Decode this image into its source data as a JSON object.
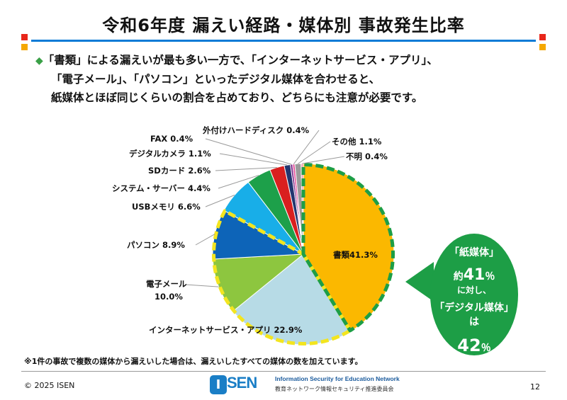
{
  "title": "令和6年度 漏えい経路・媒体別 事故発生比率",
  "summary": {
    "bullet": "◆",
    "line1": "「書類」による漏えいが最も多い一方で、「インターネットサービス・アプリ」、",
    "line2": "「電子メール」、「パソコン」といったデジタル媒体を合わせると、",
    "line3": "紙媒体とほぼ同じくらいの割合を占めており、どちらにも注意が必要です。"
  },
  "callout": {
    "line1": "「紙媒体」",
    "prefix": "約",
    "value": "41",
    "unit": "％",
    "line3": "に対し、",
    "line4": "「デジタル媒体」は",
    "value2": "42",
    "unit2": "％"
  },
  "note": "※1件の事故で複数の媒体から漏えいした場合は、漏えいしたすべての媒体の数を加えています。",
  "footer": {
    "copyright": "© 2025 ISEN",
    "logo_letter": "I",
    "logo_name": "SEN",
    "logo_en": "Information Security for Education Network",
    "logo_ja": "教育ネットワーク情報セキュリティ推進委員会",
    "page": "12"
  },
  "colors": {
    "accent_blue": "#0a7bd6",
    "green": "#1d9e46",
    "highlight_yellow": "#f3e51f",
    "square_red": "#e8261a",
    "square_orange": "#f5a800"
  },
  "chart_data": {
    "type": "pie",
    "start": "12 o'clock, clockwise",
    "slices": [
      {
        "name": "書類",
        "value": 41.3,
        "label": "書類41.3%",
        "color": "#fbb800"
      },
      {
        "name": "インターネットサービス・アプリ",
        "value": 22.9,
        "label": "インターネットサービス・アプリ 22.9%",
        "color": "#b7dbe6"
      },
      {
        "name": "電子メール",
        "value": 10.0,
        "label": "電子メール\n10.0%",
        "color": "#8dc63f"
      },
      {
        "name": "パソコン",
        "value": 8.9,
        "label": "パソコン 8.9%",
        "color": "#0d64b8"
      },
      {
        "name": "USBメモリ",
        "value": 6.6,
        "label": "USBメモリ 6.6%",
        "color": "#18aee8"
      },
      {
        "name": "システム・サーバー",
        "value": 4.4,
        "label": "システム・サーバー 4.4%",
        "color": "#1da04a"
      },
      {
        "name": "SDカード",
        "value": 2.6,
        "label": "SDカード 2.6%",
        "color": "#d9201f"
      },
      {
        "name": "デジタルカメラ",
        "value": 1.1,
        "label": "デジタルカメラ 1.1%",
        "color": "#23366f"
      },
      {
        "name": "FAX",
        "value": 0.4,
        "label": "FAX 0.4%",
        "color": "#7c2d8c"
      },
      {
        "name": "外付けハードディスク",
        "value": 0.4,
        "label": "外付けハードディスク 0.4%",
        "color": "#e6559c"
      },
      {
        "name": "その他",
        "value": 1.1,
        "label": "その他 1.1%",
        "color": "#9a9a9a"
      },
      {
        "name": "不明",
        "value": 0.4,
        "label": "不明 0.4%",
        "color": "#f09bb0"
      }
    ],
    "groups": {
      "paper": {
        "slices": [
          "書類"
        ],
        "border": "green dashed"
      },
      "digital": {
        "slices": [
          "インターネットサービス・アプリ",
          "電子メール",
          "パソコン"
        ],
        "border": "yellow dashed"
      }
    }
  }
}
